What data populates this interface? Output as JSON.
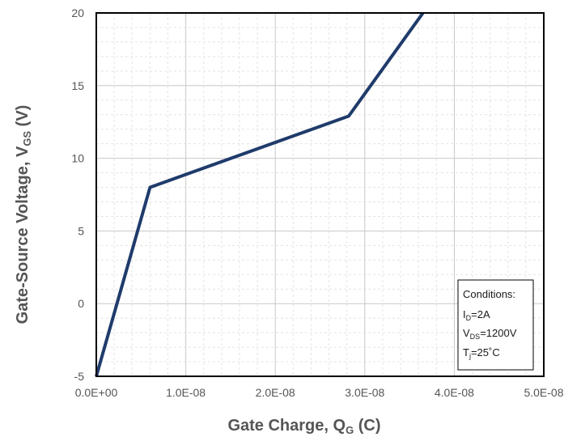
{
  "chart_data": {
    "type": "line",
    "xlabel_main": "Gate Charge, Q",
    "xlabel_sub": "G",
    "xlabel_tail": " (C)",
    "ylabel_main": "Gate-Source Voltage, V",
    "ylabel_sub": "GS",
    "ylabel_tail": " (V)",
    "xlim": [
      0,
      5e-08
    ],
    "ylim": [
      -5,
      20
    ],
    "x_tick_values": [
      0,
      1e-08,
      2e-08,
      3e-08,
      4e-08,
      5e-08
    ],
    "x_tick_labels": [
      "0.0E+00",
      "1.0E-08",
      "2.0E-08",
      "3.0E-08",
      "4.0E-08",
      "5.0E-08"
    ],
    "y_tick_values": [
      -5,
      0,
      5,
      10,
      15,
      20
    ],
    "y_tick_labels": [
      "-5",
      "0",
      "5",
      "10",
      "15",
      "20"
    ],
    "grid": true,
    "series": [
      {
        "color": "#1f3b6b",
        "x": [
          0,
          6e-09,
          2.82e-08,
          3.65e-08
        ],
        "y": [
          -5,
          8,
          12.9,
          20
        ]
      }
    ]
  },
  "conditions": {
    "title": "Conditions:",
    "id_main": "I",
    "id_sub": "D",
    "id_value": "=2A",
    "vds_main": "V",
    "vds_sub": "DS",
    "vds_value": "=1200V",
    "tj_main": "T",
    "tj_sub": "j",
    "tj_value": "=25˚C"
  }
}
